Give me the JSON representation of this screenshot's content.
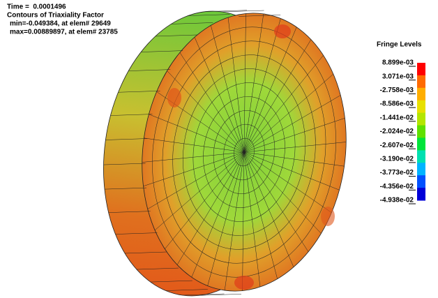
{
  "header": {
    "time": "Time =  0.0001496",
    "title": "Contours of Triaxiality Factor",
    "min": "min=-0.049384, at elem# 29649",
    "max": "max=0.00889897, at elem# 23785"
  },
  "legend": {
    "title": "Fringe Levels",
    "levels": [
      "8.899e-03",
      "3.071e-03",
      "-2.758e-03",
      "-8.586e-03",
      "-1.441e-02",
      "-2.024e-02",
      "-2.607e-02",
      "-3.190e-02",
      "-3.773e-02",
      "-4.356e-02",
      "-4.938e-02"
    ],
    "colors": [
      "#ff0000",
      "#ff6a00",
      "#ffae00",
      "#e8e000",
      "#b4e600",
      "#5fe000",
      "#00e43a",
      "#00e0b0",
      "#00b4ff",
      "#0050ff",
      "#0000d8"
    ]
  }
}
